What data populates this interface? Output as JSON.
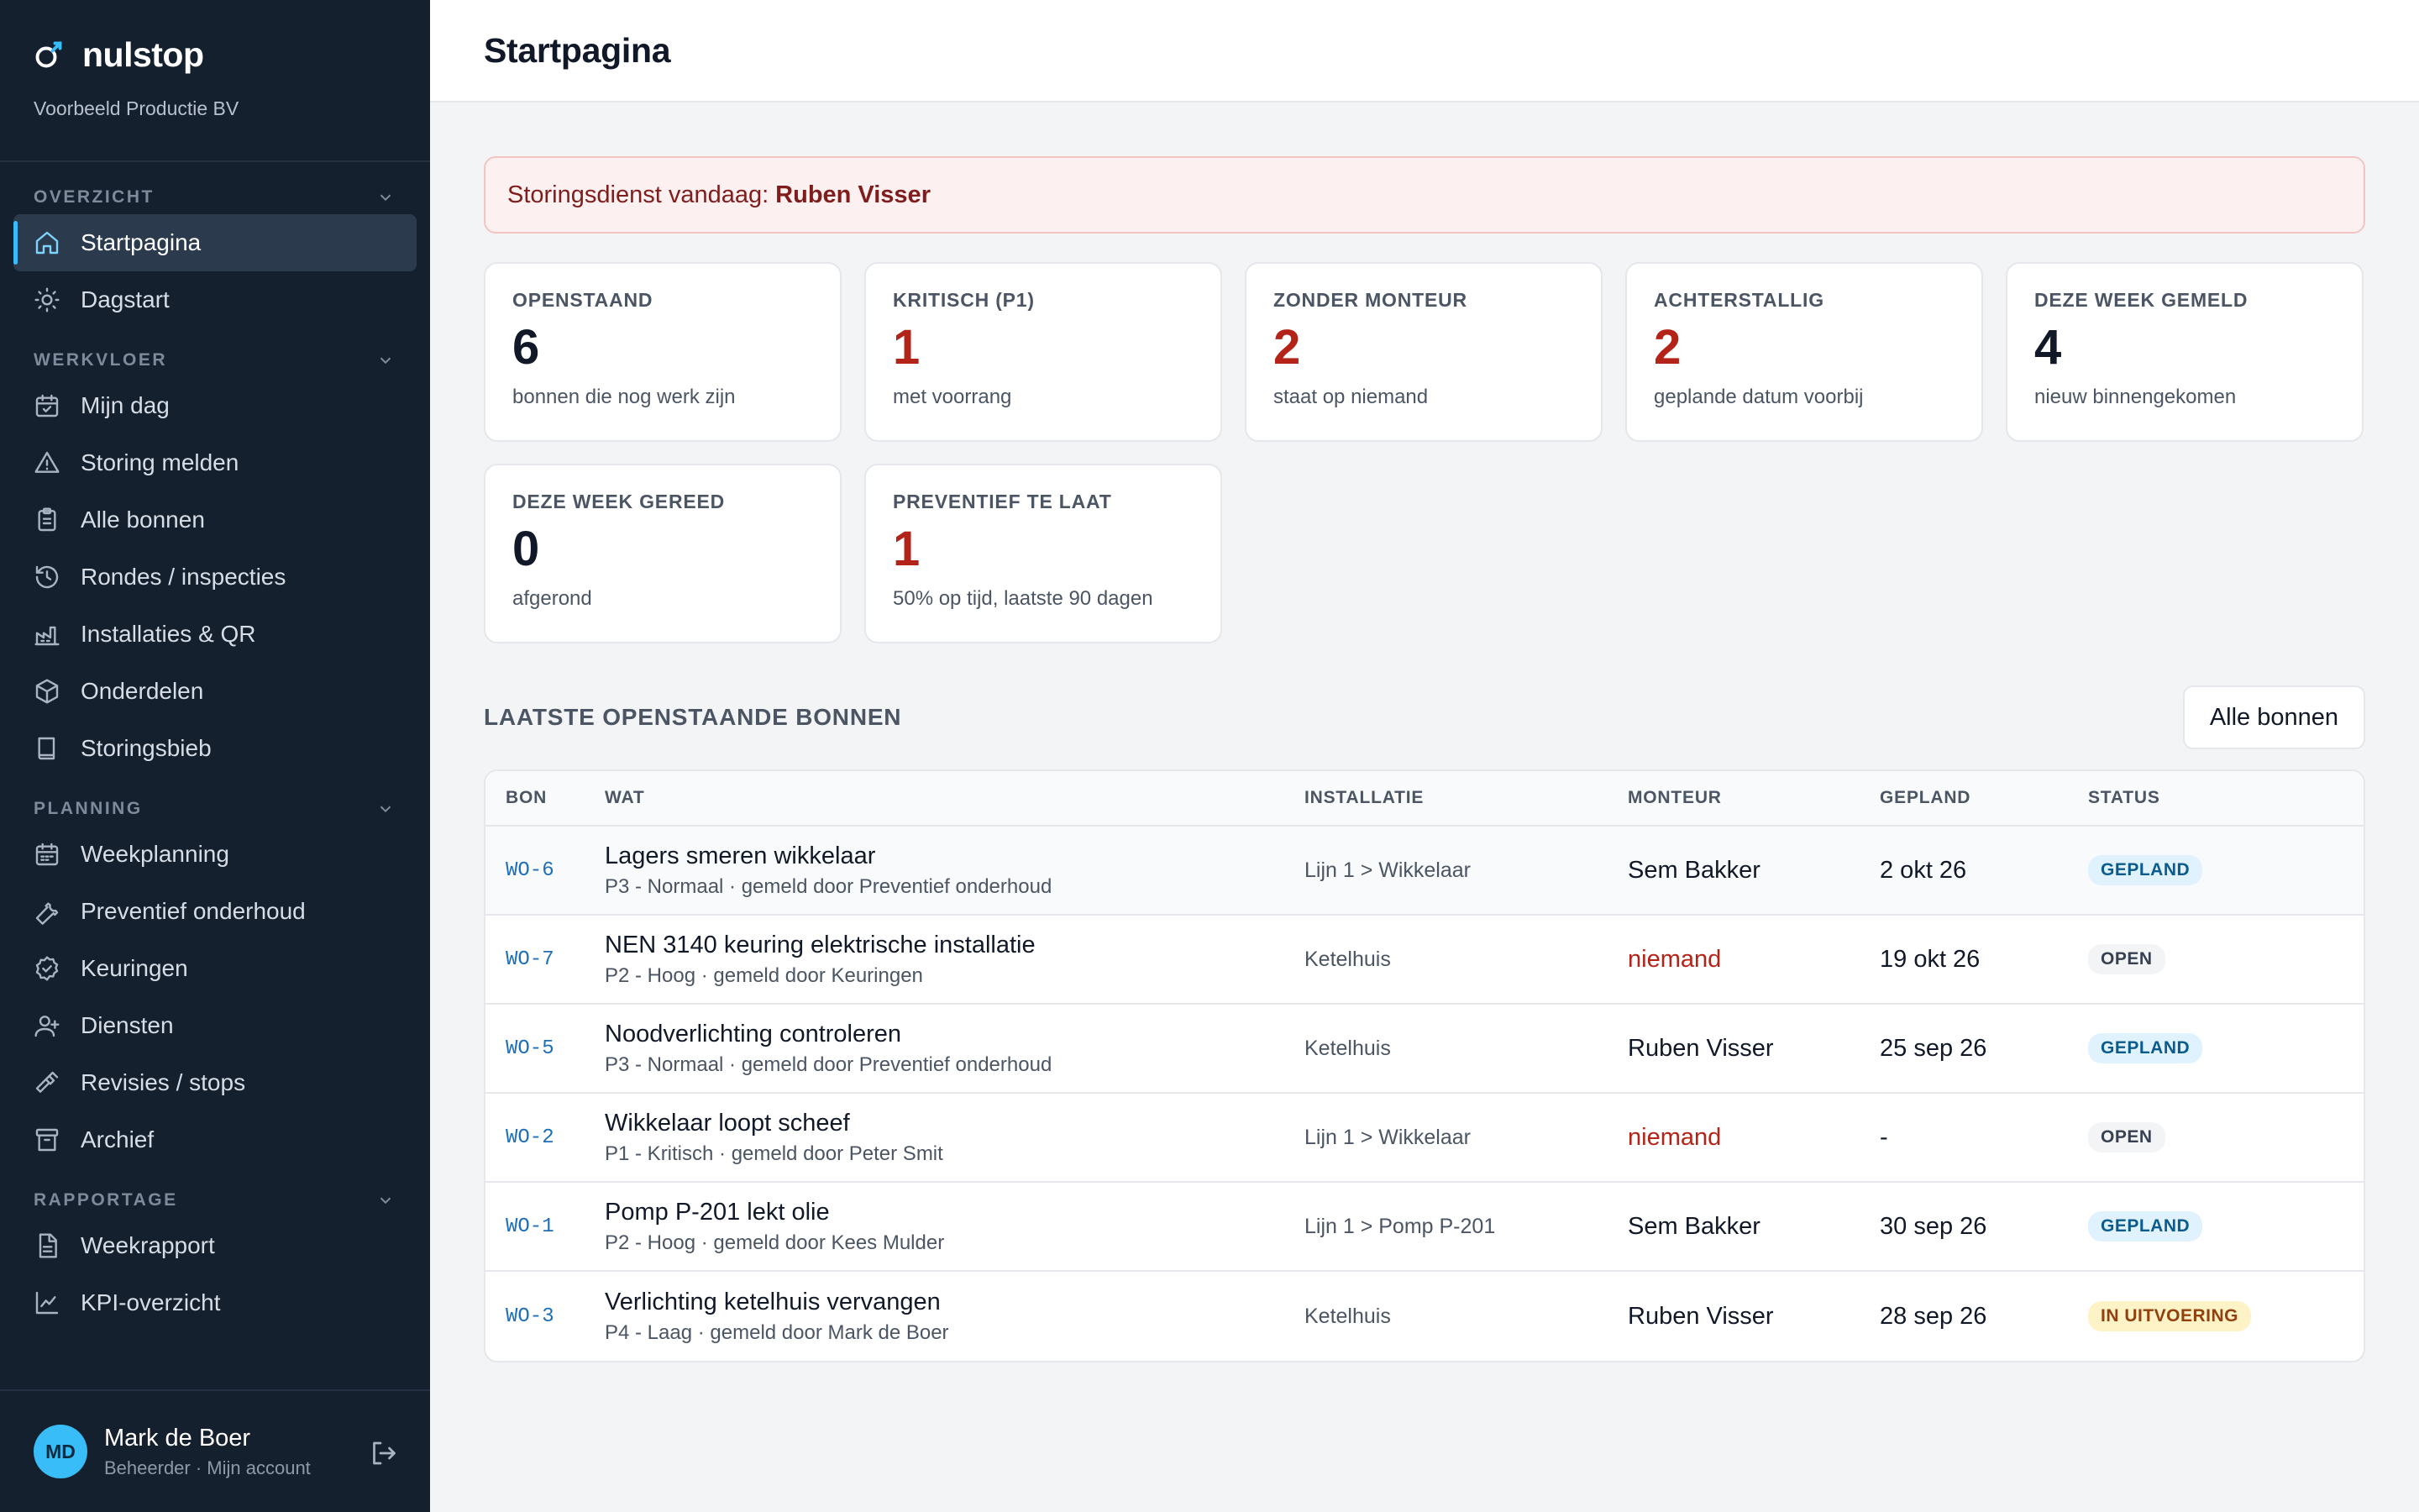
{
  "app": {
    "name": "nulstop",
    "company": "Voorbeeld Productie BV"
  },
  "sidebar": {
    "sections": [
      {
        "title": "OVERZICHT",
        "items": [
          {
            "label": "Startpagina",
            "icon": "home-icon",
            "active": true
          },
          {
            "label": "Dagstart",
            "icon": "sun-icon"
          }
        ]
      },
      {
        "title": "WERKVLOER",
        "items": [
          {
            "label": "Mijn dag",
            "icon": "calendar-check-icon"
          },
          {
            "label": "Storing melden",
            "icon": "warning-icon"
          },
          {
            "label": "Alle bonnen",
            "icon": "clipboard-icon"
          },
          {
            "label": "Rondes / inspecties",
            "icon": "history-icon"
          },
          {
            "label": "Installaties & QR",
            "icon": "factory-icon"
          },
          {
            "label": "Onderdelen",
            "icon": "box-icon"
          },
          {
            "label": "Storingsbieb",
            "icon": "book-icon"
          }
        ]
      },
      {
        "title": "PLANNING",
        "items": [
          {
            "label": "Weekplanning",
            "icon": "calendar-icon"
          },
          {
            "label": "Preventief onderhoud",
            "icon": "wrench-icon"
          },
          {
            "label": "Keuringen",
            "icon": "badge-check-icon"
          },
          {
            "label": "Diensten",
            "icon": "user-plus-icon"
          },
          {
            "label": "Revisies / stops",
            "icon": "hammer-icon"
          },
          {
            "label": "Archief",
            "icon": "archive-icon"
          }
        ]
      },
      {
        "title": "RAPPORTAGE",
        "items": [
          {
            "label": "Weekrapport",
            "icon": "file-text-icon"
          },
          {
            "label": "KPI-overzicht",
            "icon": "line-chart-icon"
          }
        ]
      }
    ],
    "user": {
      "initials": "MD",
      "name": "Mark de Boer",
      "role": "Beheerder · Mijn account"
    }
  },
  "header": {
    "title": "Startpagina"
  },
  "alert": {
    "prefix": "Storingsdienst vandaag:",
    "name": "Ruben Visser"
  },
  "cards": [
    {
      "label": "OPENSTAAND",
      "value": "6",
      "sub": "bonnen die nog werk zijn",
      "color": "#111827"
    },
    {
      "label": "KRITISCH (P1)",
      "value": "1",
      "sub": "met voorrang",
      "color": "#b42318"
    },
    {
      "label": "ZONDER MONTEUR",
      "value": "2",
      "sub": "staat op niemand",
      "color": "#b42318"
    },
    {
      "label": "ACHTERSTALLIG",
      "value": "2",
      "sub": "geplande datum voorbij",
      "color": "#b42318"
    },
    {
      "label": "DEZE WEEK GEMELD",
      "value": "4",
      "sub": "nieuw binnengekomen",
      "color": "#111827"
    },
    {
      "label": "DEZE WEEK GEREED",
      "value": "0",
      "sub": "afgerond",
      "color": "#111827"
    },
    {
      "label": "PREVENTIEF TE LAAT",
      "value": "1",
      "sub": "50% op tijd, laatste 90 dagen",
      "color": "#b42318"
    }
  ],
  "list": {
    "title": "LAATSTE OPENSTAANDE BONNEN",
    "button": "Alle bonnen",
    "columns": [
      "BON",
      "WAT",
      "INSTALLATIE",
      "MONTEUR",
      "GEPLAND",
      "STATUS"
    ],
    "rows": [
      {
        "bon": "WO-6",
        "title": "Lagers smeren wikkelaar",
        "sub": "P3 - Normaal · gemeld door Preventief onderhoud",
        "installatie": "Lijn 1 > Wikkelaar",
        "monteur": "Sem Bakker",
        "gepland": "2 okt 26",
        "status": "GEPLAND"
      },
      {
        "bon": "WO-7",
        "title": "NEN 3140 keuring elektrische installatie",
        "sub": "P2 - Hoog · gemeld door Keuringen",
        "installatie": "Ketelhuis",
        "monteur": "niemand",
        "gepland": "19 okt 26",
        "status": "OPEN"
      },
      {
        "bon": "WO-5",
        "title": "Noodverlichting controleren",
        "sub": "P3 - Normaal · gemeld door Preventief onderhoud",
        "installatie": "Ketelhuis",
        "monteur": "Ruben Visser",
        "gepland": "25 sep 26",
        "status": "GEPLAND"
      },
      {
        "bon": "WO-2",
        "title": "Wikkelaar loopt scheef",
        "sub": "P1 - Kritisch · gemeld door Peter Smit",
        "installatie": "Lijn 1 > Wikkelaar",
        "monteur": "niemand",
        "gepland": "-",
        "status": "OPEN"
      },
      {
        "bon": "WO-1",
        "title": "Pomp P-201 lekt olie",
        "sub": "P2 - Hoog · gemeld door Kees Mulder",
        "installatie": "Lijn 1 > Pomp P-201",
        "monteur": "Sem Bakker",
        "gepland": "30 sep 26",
        "status": "GEPLAND"
      },
      {
        "bon": "WO-3",
        "title": "Verlichting ketelhuis vervangen",
        "sub": "P4 - Laag · gemeld door Mark de Boer",
        "installatie": "Ketelhuis",
        "monteur": "Ruben Visser",
        "gepland": "28 sep 26",
        "status": "IN UITVOERING"
      }
    ]
  },
  "colors": {
    "sidebar": "#15202e",
    "accent": "#38bdf8",
    "danger": "#b42318",
    "link": "#1d6fb8"
  }
}
